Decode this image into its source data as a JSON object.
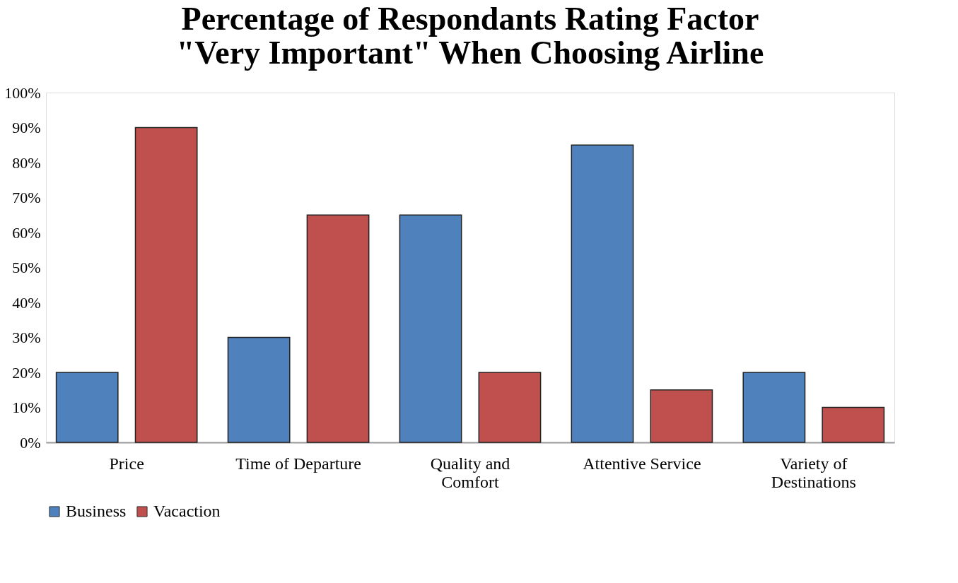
{
  "chart_data": {
    "type": "bar",
    "title": "Percentage of Respondants Rating Factor \"Very Important\" When Choosing Airline",
    "categories": [
      "Price",
      "Time of Departure",
      "Quality and Comfort",
      "Attentive Service",
      "Variety of Destinations"
    ],
    "series": [
      {
        "name": "Business",
        "color": "#4f81bd",
        "values": [
          20,
          30,
          65,
          85,
          20
        ]
      },
      {
        "name": "Vacaction",
        "color": "#c0504d",
        "values": [
          90,
          65,
          20,
          15,
          10
        ]
      }
    ],
    "ylim": [
      0,
      100
    ],
    "yticks": [
      {
        "value": 0,
        "label": "0%"
      },
      {
        "value": 10,
        "label": "10%"
      },
      {
        "value": 20,
        "label": "20%"
      },
      {
        "value": 30,
        "label": "30%"
      },
      {
        "value": 40,
        "label": "40%"
      },
      {
        "value": 50,
        "label": "50%"
      },
      {
        "value": 60,
        "label": "60%"
      },
      {
        "value": 70,
        "label": "70%"
      },
      {
        "value": 80,
        "label": "80%"
      },
      {
        "value": 90,
        "label": "90%"
      },
      {
        "value": 100,
        "label": "100%"
      }
    ],
    "grid": false,
    "legend": "bottom"
  }
}
